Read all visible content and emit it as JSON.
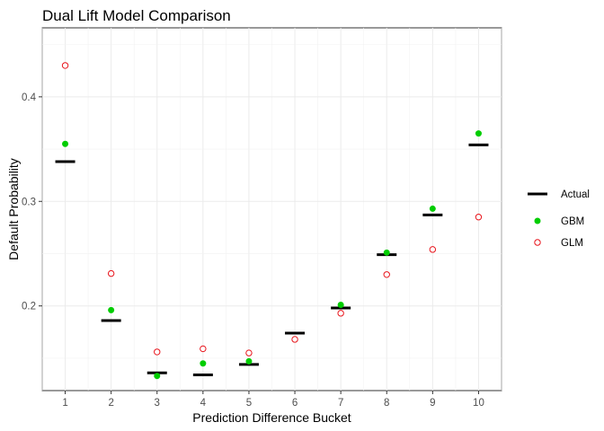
{
  "chart_data": {
    "type": "scatter",
    "title": "Dual Lift Model Comparison",
    "xlabel": "Prediction Difference Bucket",
    "ylabel": "Default Probability",
    "categories": [
      "1",
      "2",
      "3",
      "4",
      "5",
      "6",
      "7",
      "8",
      "9",
      "10"
    ],
    "xlim": [
      0.5,
      10.5
    ],
    "ylim": [
      0.119,
      0.466
    ],
    "yticks": [
      0.2,
      0.3,
      0.4
    ],
    "ytick_labels": [
      "0.2",
      "0.3",
      "0.4"
    ],
    "grid": true,
    "legend_position": "right",
    "series": [
      {
        "name": "Actual",
        "marker": "dash",
        "color": "#000000",
        "values": [
          0.338,
          0.186,
          0.136,
          0.134,
          0.144,
          0.174,
          0.198,
          0.249,
          0.287,
          0.354
        ]
      },
      {
        "name": "GBM",
        "marker": "filled-circle",
        "color": "#00cd00",
        "values": [
          0.355,
          0.196,
          0.133,
          0.145,
          0.147,
          0.168,
          0.201,
          0.251,
          0.293,
          0.365
        ]
      },
      {
        "name": "GLM",
        "marker": "open-circle",
        "color": "#e8141b",
        "values": [
          0.43,
          0.231,
          0.156,
          0.159,
          0.155,
          0.168,
          0.193,
          0.23,
          0.254,
          0.285
        ]
      }
    ]
  }
}
